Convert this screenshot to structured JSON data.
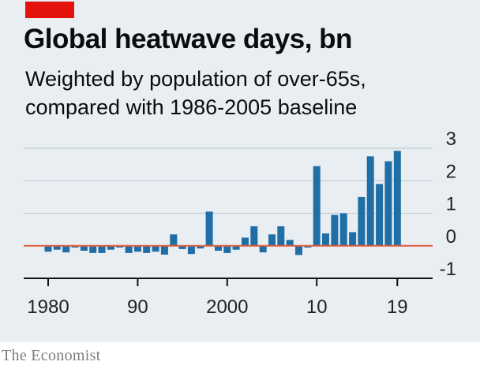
{
  "header": {
    "title": "Global heatwave days, bn",
    "subtitle_line1": "Weighted by population of over-65s,",
    "subtitle_line2": "compared with 1986-2005 baseline"
  },
  "footer": {
    "source": "The Economist"
  },
  "colors": {
    "bar": "#1f6ea6",
    "baseline": "#e05a3c",
    "grid": "#c5cdd3",
    "accent": "#e3120b",
    "panel": "#e8eef2"
  },
  "chart_data": {
    "type": "bar",
    "title": "Global heatwave days, bn",
    "subtitle": "Weighted by population of over-65s, compared with 1986-2005 baseline",
    "xlabel": "",
    "ylabel": "",
    "ylim": [
      -1,
      3
    ],
    "yticks": [
      3,
      2,
      1,
      0,
      -1
    ],
    "y_axis_side": "right",
    "grid": true,
    "xticks": [
      {
        "year": 1980,
        "label": "1980"
      },
      {
        "year": 1990,
        "label": "90"
      },
      {
        "year": 2000,
        "label": "2000"
      },
      {
        "year": 2010,
        "label": "10"
      },
      {
        "year": 2019,
        "label": "19"
      }
    ],
    "categories": [
      1980,
      1981,
      1982,
      1983,
      1984,
      1985,
      1986,
      1987,
      1988,
      1989,
      1990,
      1991,
      1992,
      1993,
      1994,
      1995,
      1996,
      1997,
      1998,
      1999,
      2000,
      2001,
      2002,
      2003,
      2004,
      2005,
      2006,
      2007,
      2008,
      2009,
      2010,
      2011,
      2012,
      2013,
      2014,
      2015,
      2016,
      2017,
      2018,
      2019
    ],
    "values": [
      -0.18,
      -0.12,
      -0.2,
      -0.05,
      -0.15,
      -0.22,
      -0.22,
      -0.12,
      -0.05,
      -0.22,
      -0.18,
      -0.22,
      -0.18,
      -0.27,
      0.35,
      -0.1,
      -0.25,
      -0.08,
      1.05,
      -0.15,
      -0.22,
      -0.12,
      0.25,
      0.6,
      -0.2,
      0.35,
      0.6,
      0.18,
      -0.28,
      -0.05,
      2.45,
      0.38,
      0.95,
      1.0,
      0.42,
      1.5,
      2.75,
      1.9,
      2.6,
      2.92
    ]
  }
}
